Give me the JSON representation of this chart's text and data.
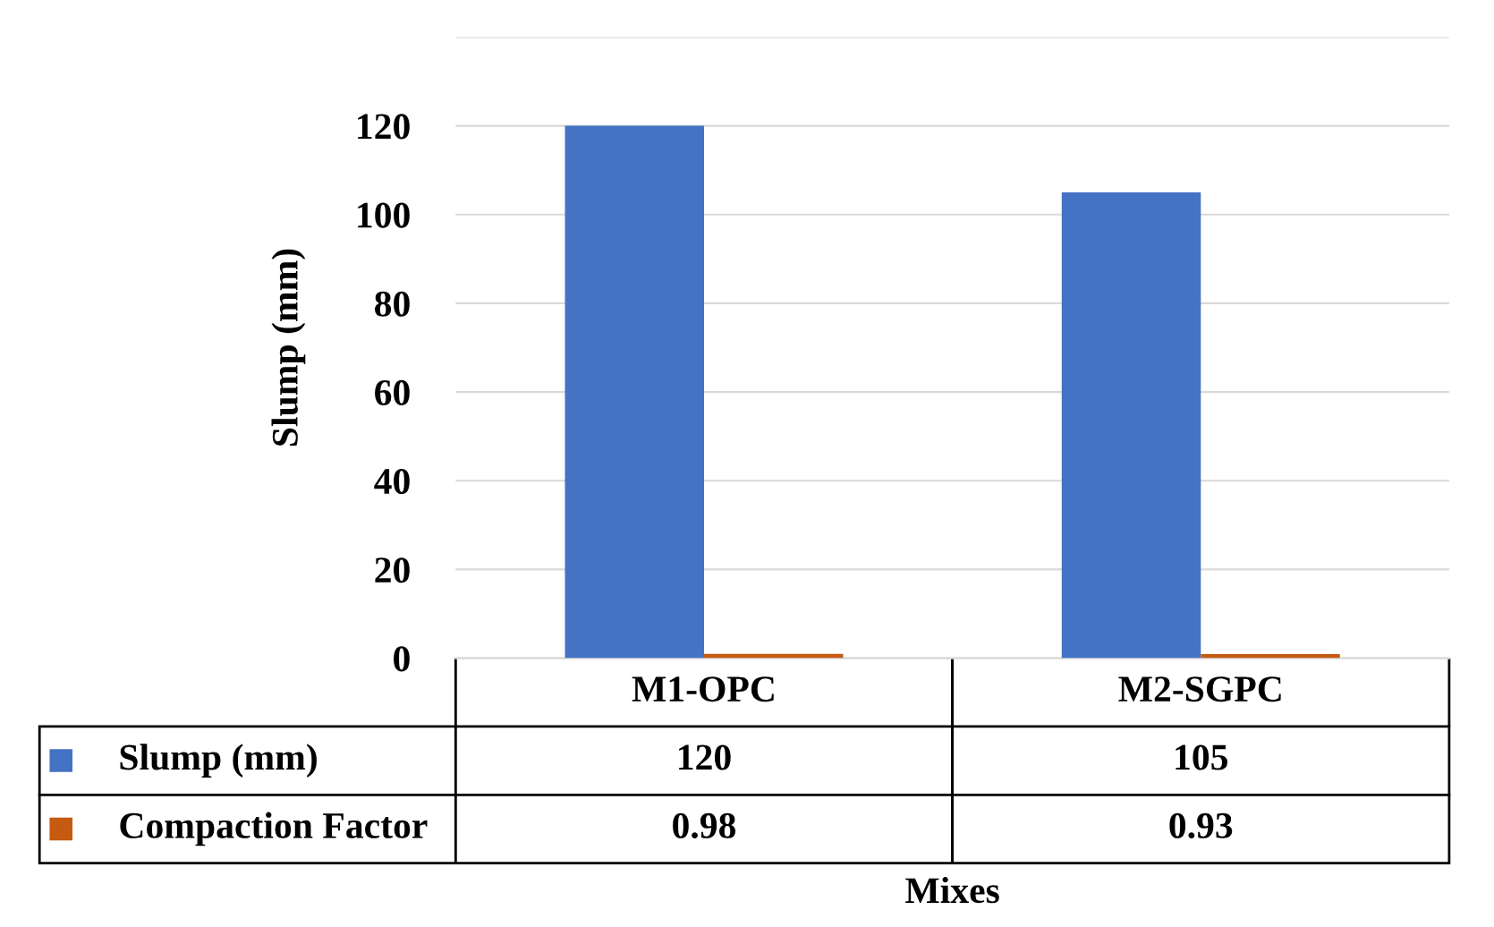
{
  "chart_data": {
    "type": "bar",
    "xlabel": "Mixes",
    "ylabel": "Slump (mm)",
    "categories": [
      "M1-OPC",
      "M2-SGPC"
    ],
    "series": [
      {
        "name": "Slump (mm)",
        "color": "#4472c4",
        "values": [
          120,
          105
        ]
      },
      {
        "name": "Compaction Factor",
        "color": "#c55a11",
        "values": [
          0.98,
          0.93
        ]
      }
    ],
    "ylim": [
      0,
      140
    ],
    "yticks": [
      0,
      20,
      40,
      60,
      80,
      100,
      120,
      {
        "value": 140,
        "label": null
      }
    ],
    "grid": "y",
    "data_labels": true,
    "legend": "bottom left"
  }
}
